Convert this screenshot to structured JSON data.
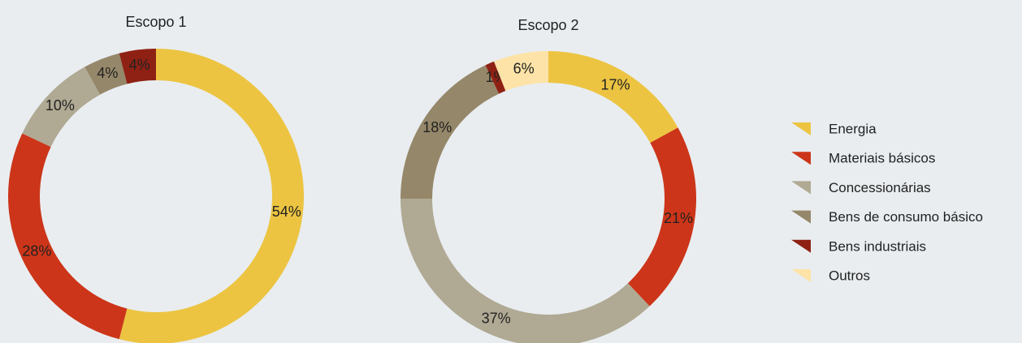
{
  "chart_data": [
    {
      "type": "pie",
      "title": "Escopo 1",
      "categories": [
        "Energia",
        "Materiais básicos",
        "Concessionárias",
        "Bens de consumo básico",
        "Bens industriais"
      ],
      "values": [
        54,
        28,
        10,
        4,
        4
      ],
      "value_labels": [
        "54%",
        "28%",
        "10%",
        "4%",
        "4%"
      ],
      "colors": [
        "#ecc441",
        "#cc3519",
        "#b0a993",
        "#958769",
        "#8e2114"
      ]
    },
    {
      "type": "pie",
      "title": "Escopo 2",
      "categories": [
        "Energia",
        "Materiais básicos",
        "Concessionárias",
        "Bens de consumo básico",
        "Bens industriais",
        "Outros"
      ],
      "values": [
        17,
        21,
        37,
        18,
        1,
        6
      ],
      "value_labels": [
        "17%",
        "21%",
        "37%",
        "18%",
        "1%",
        "6%"
      ],
      "colors": [
        "#ecc441",
        "#cc3519",
        "#b0a993",
        "#958769",
        "#8e2114",
        "#fde3a7"
      ]
    }
  ]
}
